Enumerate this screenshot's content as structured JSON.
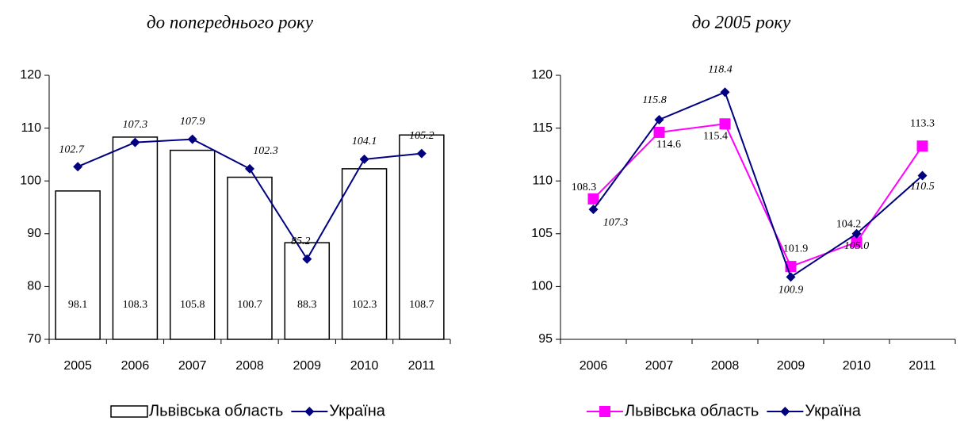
{
  "chart_data": [
    {
      "type": "bar",
      "title": "до попереднього року",
      "categories": [
        "2005",
        "2006",
        "2007",
        "2008",
        "2009",
        "2010",
        "2011"
      ],
      "series": [
        {
          "name": "Львівська область",
          "type": "bar",
          "color": "#ffffff",
          "values": [
            98.1,
            108.3,
            105.8,
            100.7,
            88.3,
            102.3,
            108.7
          ],
          "value_labels": [
            "98.1",
            "108.3",
            "105.8",
            "100.7",
            "88.3",
            "102.3",
            "108.7"
          ]
        },
        {
          "name": "Україна",
          "type": "line",
          "color": "#000080",
          "values": [
            102.7,
            107.3,
            107.9,
            102.3,
            85.2,
            104.1,
            105.2
          ],
          "value_labels": [
            "102.7",
            "107.3",
            "107.9",
            "102.3",
            "85.2",
            "104.1",
            "105.2"
          ]
        }
      ],
      "ylim": [
        70,
        120
      ],
      "yticks": [
        70,
        80,
        90,
        100,
        110,
        120
      ]
    },
    {
      "type": "line",
      "title": "до 2005 року",
      "categories": [
        "2006",
        "2007",
        "2008",
        "2009",
        "2010",
        "2011"
      ],
      "series": [
        {
          "name": "Львівська область",
          "type": "line",
          "color": "#ff00ff",
          "values": [
            108.3,
            114.6,
            115.4,
            101.9,
            104.2,
            113.3
          ],
          "value_labels": [
            "108.3",
            "114.6",
            "115.4",
            "101.9",
            "104.2",
            "113.3"
          ]
        },
        {
          "name": "Україна",
          "type": "line",
          "color": "#000080",
          "values": [
            107.3,
            115.8,
            118.4,
            100.9,
            105.0,
            110.5
          ],
          "value_labels": [
            "107.3",
            "115.8",
            "118.4",
            "100.9",
            "105.0",
            "110.5"
          ]
        }
      ],
      "ylim": [
        95,
        120
      ],
      "yticks": [
        95,
        100,
        105,
        110,
        115,
        120
      ]
    }
  ]
}
